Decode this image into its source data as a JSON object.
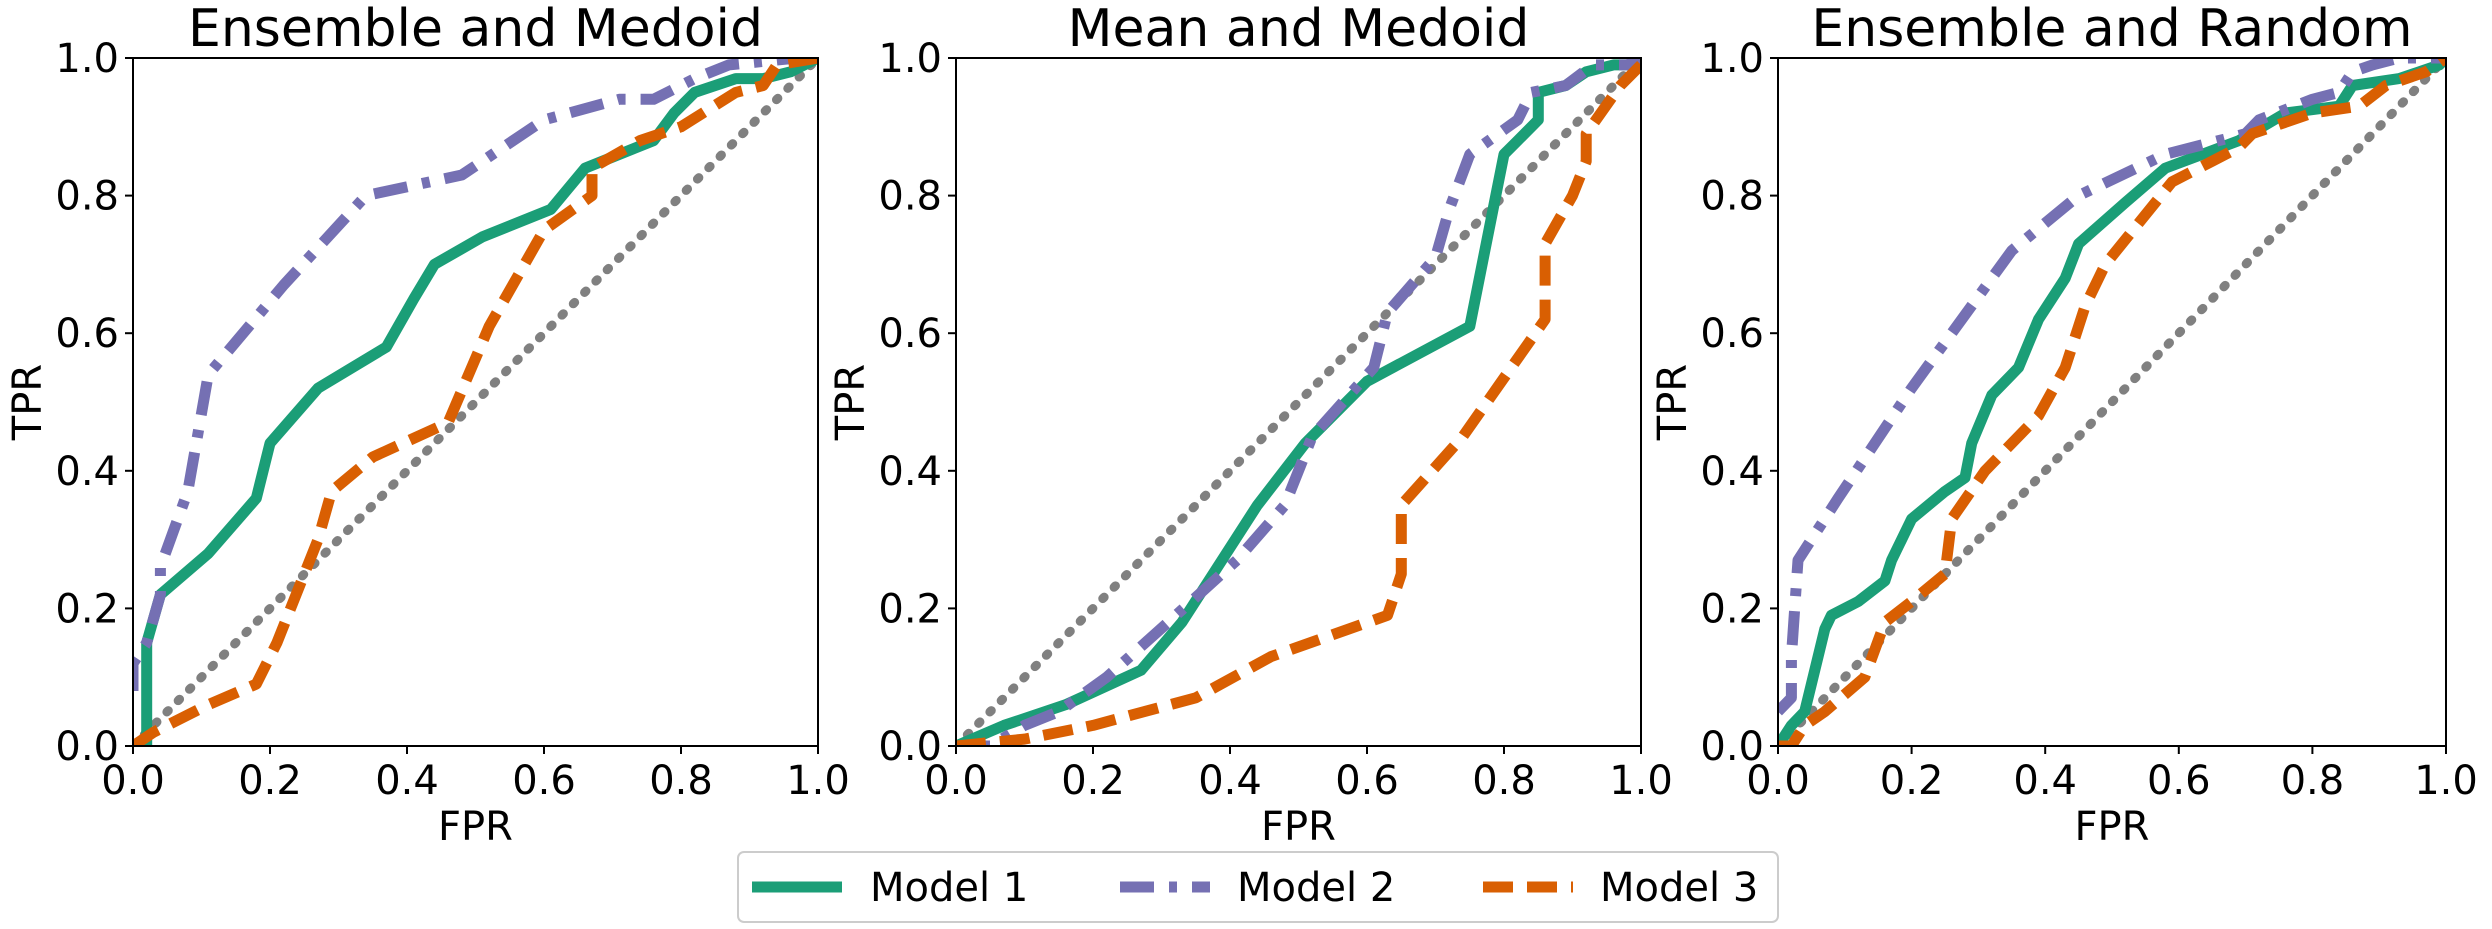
{
  "legend": [
    {
      "name": "Model 1",
      "color": "#1b9e77",
      "dash": "solid"
    },
    {
      "name": "Model 2",
      "color": "#7570b3",
      "dash": "dashdot"
    },
    {
      "name": "Model 3",
      "color": "#d95f02",
      "dash": "dashed"
    }
  ],
  "chart_data": [
    {
      "type": "line",
      "title": "Ensemble and Medoid",
      "xlabel": "FPR",
      "ylabel": "TPR",
      "xlim": [
        0,
        1
      ],
      "ylim": [
        0,
        1
      ],
      "xticks": [
        "0.0",
        "0.2",
        "0.4",
        "0.6",
        "0.8",
        "1.0"
      ],
      "yticks": [
        "0.0",
        "0.2",
        "0.4",
        "0.6",
        "0.8",
        "1.0"
      ],
      "diagonal": true,
      "series": [
        {
          "name": "Model 1",
          "points": [
            [
              0,
              0
            ],
            [
              0.02,
              0
            ],
            [
              0.02,
              0.15
            ],
            [
              0.04,
              0.22
            ],
            [
              0.11,
              0.28
            ],
            [
              0.18,
              0.36
            ],
            [
              0.2,
              0.44
            ],
            [
              0.27,
              0.52
            ],
            [
              0.37,
              0.58
            ],
            [
              0.41,
              0.65
            ],
            [
              0.44,
              0.7
            ],
            [
              0.51,
              0.74
            ],
            [
              0.61,
              0.78
            ],
            [
              0.66,
              0.84
            ],
            [
              0.76,
              0.88
            ],
            [
              0.79,
              0.92
            ],
            [
              0.82,
              0.95
            ],
            [
              0.88,
              0.97
            ],
            [
              0.92,
              0.97
            ],
            [
              0.96,
              0.98
            ],
            [
              1,
              1
            ]
          ]
        },
        {
          "name": "Model 2",
          "points": [
            [
              0,
              0.08
            ],
            [
              0,
              0.12
            ],
            [
              0.02,
              0.15
            ],
            [
              0.04,
              0.22
            ],
            [
              0.04,
              0.26
            ],
            [
              0.08,
              0.37
            ],
            [
              0.11,
              0.54
            ],
            [
              0.22,
              0.67
            ],
            [
              0.34,
              0.8
            ],
            [
              0.48,
              0.83
            ],
            [
              0.6,
              0.91
            ],
            [
              0.71,
              0.94
            ],
            [
              0.76,
              0.94
            ],
            [
              0.82,
              0.97
            ],
            [
              0.87,
              0.99
            ],
            [
              0.97,
              1
            ],
            [
              1,
              1
            ]
          ]
        },
        {
          "name": "Model 3",
          "points": [
            [
              0,
              0
            ],
            [
              0.03,
              0.02
            ],
            [
              0.11,
              0.06
            ],
            [
              0.18,
              0.09
            ],
            [
              0.21,
              0.15
            ],
            [
              0.27,
              0.3
            ],
            [
              0.29,
              0.37
            ],
            [
              0.35,
              0.42
            ],
            [
              0.46,
              0.47
            ],
            [
              0.52,
              0.61
            ],
            [
              0.6,
              0.75
            ],
            [
              0.67,
              0.8
            ],
            [
              0.67,
              0.84
            ],
            [
              0.74,
              0.88
            ],
            [
              0.8,
              0.9
            ],
            [
              0.88,
              0.95
            ],
            [
              0.92,
              0.96
            ],
            [
              0.94,
              0.99
            ],
            [
              1,
              1
            ]
          ]
        }
      ]
    },
    {
      "type": "line",
      "title": "Mean and Medoid",
      "xlabel": "FPR",
      "ylabel": "TPR",
      "xlim": [
        0,
        1
      ],
      "ylim": [
        0,
        1
      ],
      "xticks": [
        "0.0",
        "0.2",
        "0.4",
        "0.6",
        "0.8",
        "1.0"
      ],
      "yticks": [
        "0.0",
        "0.2",
        "0.4",
        "0.6",
        "0.8",
        "1.0"
      ],
      "diagonal": true,
      "series": [
        {
          "name": "Model 1",
          "points": [
            [
              0,
              0
            ],
            [
              0.07,
              0.03
            ],
            [
              0.16,
              0.06
            ],
            [
              0.27,
              0.11
            ],
            [
              0.33,
              0.18
            ],
            [
              0.44,
              0.35
            ],
            [
              0.51,
              0.44
            ],
            [
              0.6,
              0.53
            ],
            [
              0.75,
              0.61
            ],
            [
              0.8,
              0.86
            ],
            [
              0.82,
              0.88
            ],
            [
              0.85,
              0.91
            ],
            [
              0.85,
              0.95
            ],
            [
              0.89,
              0.96
            ],
            [
              0.92,
              0.98
            ],
            [
              0.96,
              0.99
            ],
            [
              0.99,
              0.99
            ],
            [
              1,
              1
            ]
          ]
        },
        {
          "name": "Model 2",
          "points": [
            [
              0,
              0
            ],
            [
              0.05,
              0
            ],
            [
              0.1,
              0.03
            ],
            [
              0.15,
              0.05
            ],
            [
              0.22,
              0.1
            ],
            [
              0.31,
              0.18
            ],
            [
              0.41,
              0.27
            ],
            [
              0.48,
              0.35
            ],
            [
              0.52,
              0.45
            ],
            [
              0.61,
              0.55
            ],
            [
              0.63,
              0.63
            ],
            [
              0.7,
              0.71
            ],
            [
              0.72,
              0.78
            ],
            [
              0.75,
              0.86
            ],
            [
              0.82,
              0.91
            ],
            [
              0.84,
              0.95
            ],
            [
              0.89,
              0.96
            ],
            [
              0.93,
              0.99
            ],
            [
              0.98,
              0.99
            ],
            [
              1,
              1
            ]
          ]
        },
        {
          "name": "Model 3",
          "points": [
            [
              0,
              0
            ],
            [
              0.1,
              0.01
            ],
            [
              0.2,
              0.03
            ],
            [
              0.35,
              0.07
            ],
            [
              0.46,
              0.13
            ],
            [
              0.63,
              0.19
            ],
            [
              0.65,
              0.25
            ],
            [
              0.65,
              0.35
            ],
            [
              0.74,
              0.45
            ],
            [
              0.86,
              0.62
            ],
            [
              0.86,
              0.73
            ],
            [
              0.9,
              0.8
            ],
            [
              0.92,
              0.85
            ],
            [
              0.92,
              0.89
            ],
            [
              0.97,
              0.96
            ],
            [
              1,
              0.99
            ]
          ]
        }
      ]
    },
    {
      "type": "line",
      "title": "Ensemble and Random",
      "xlabel": "FPR",
      "ylabel": "TPR",
      "xlim": [
        0,
        1
      ],
      "ylim": [
        0,
        1
      ],
      "xticks": [
        "0.0",
        "0.2",
        "0.4",
        "0.6",
        "0.8",
        "1.0"
      ],
      "yticks": [
        "0.0",
        "0.2",
        "0.4",
        "0.6",
        "0.8",
        "1.0"
      ],
      "diagonal": true,
      "series": [
        {
          "name": "Model 1",
          "points": [
            [
              0,
              0
            ],
            [
              0.02,
              0.03
            ],
            [
              0.04,
              0.05
            ],
            [
              0.05,
              0.09
            ],
            [
              0.06,
              0.13
            ],
            [
              0.07,
              0.17
            ],
            [
              0.08,
              0.19
            ],
            [
              0.12,
              0.21
            ],
            [
              0.16,
              0.24
            ],
            [
              0.17,
              0.27
            ],
            [
              0.2,
              0.33
            ],
            [
              0.25,
              0.37
            ],
            [
              0.28,
              0.39
            ],
            [
              0.29,
              0.44
            ],
            [
              0.32,
              0.51
            ],
            [
              0.36,
              0.55
            ],
            [
              0.39,
              0.62
            ],
            [
              0.43,
              0.68
            ],
            [
              0.45,
              0.73
            ],
            [
              0.52,
              0.79
            ],
            [
              0.58,
              0.84
            ],
            [
              0.69,
              0.88
            ],
            [
              0.76,
              0.92
            ],
            [
              0.84,
              0.93
            ],
            [
              0.86,
              0.96
            ],
            [
              0.93,
              0.97
            ],
            [
              0.99,
              0.99
            ],
            [
              1,
              1
            ]
          ]
        },
        {
          "name": "Model 2",
          "points": [
            [
              0,
              0.05
            ],
            [
              0.02,
              0.07
            ],
            [
              0.02,
              0.13
            ],
            [
              0.03,
              0.27
            ],
            [
              0.09,
              0.36
            ],
            [
              0.2,
              0.52
            ],
            [
              0.35,
              0.72
            ],
            [
              0.45,
              0.8
            ],
            [
              0.58,
              0.86
            ],
            [
              0.7,
              0.89
            ],
            [
              0.72,
              0.91
            ],
            [
              0.8,
              0.94
            ],
            [
              0.84,
              0.95
            ],
            [
              0.86,
              0.98
            ],
            [
              0.89,
              0.99
            ],
            [
              0.93,
              1.0
            ],
            [
              1,
              1
            ]
          ]
        },
        {
          "name": "Model 3",
          "points": [
            [
              0,
              0
            ],
            [
              0.02,
              0
            ],
            [
              0.04,
              0.03
            ],
            [
              0.07,
              0.05
            ],
            [
              0.13,
              0.1
            ],
            [
              0.16,
              0.18
            ],
            [
              0.2,
              0.21
            ],
            [
              0.25,
              0.25
            ],
            [
              0.26,
              0.33
            ],
            [
              0.31,
              0.4
            ],
            [
              0.39,
              0.48
            ],
            [
              0.43,
              0.55
            ],
            [
              0.46,
              0.64
            ],
            [
              0.49,
              0.7
            ],
            [
              0.54,
              0.76
            ],
            [
              0.59,
              0.82
            ],
            [
              0.65,
              0.85
            ],
            [
              0.69,
              0.87
            ],
            [
              0.71,
              0.89
            ],
            [
              0.8,
              0.92
            ],
            [
              0.87,
              0.93
            ],
            [
              0.91,
              0.96
            ],
            [
              0.97,
              0.98
            ],
            [
              1,
              1
            ]
          ]
        }
      ]
    }
  ]
}
